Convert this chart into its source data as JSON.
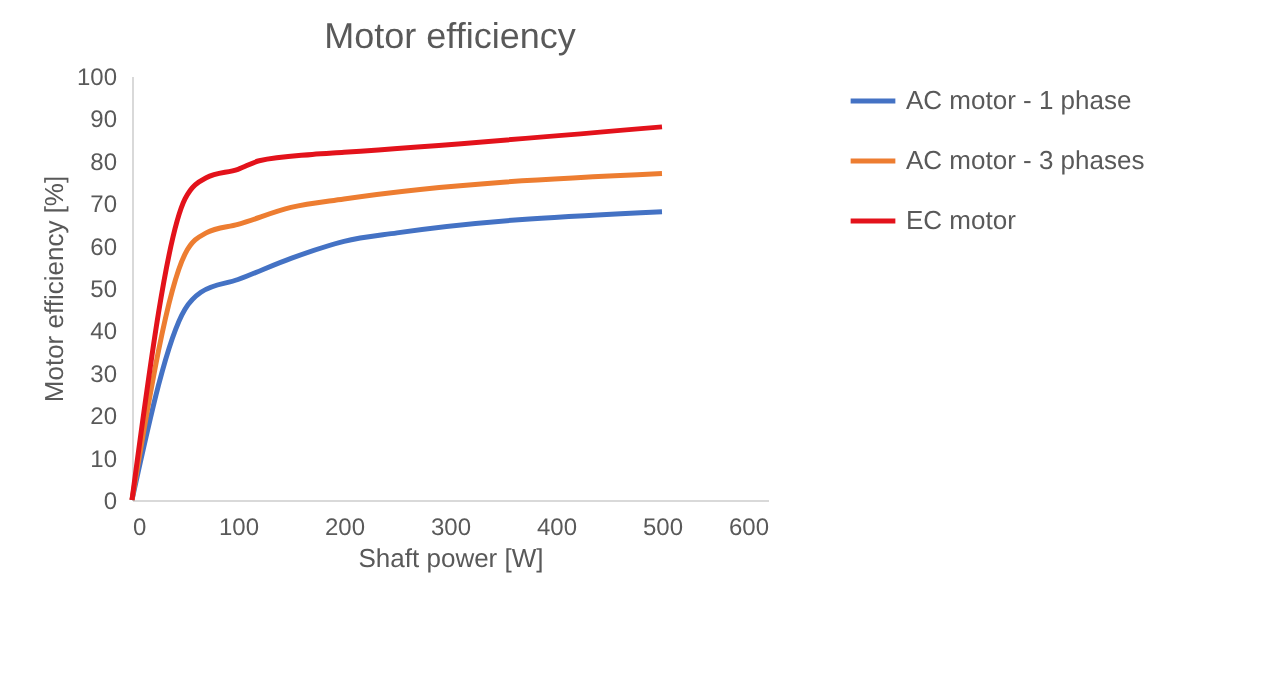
{
  "chart_data": {
    "type": "line",
    "title": "Motor efficiency",
    "xlabel": "Shaft power [W]",
    "ylabel": "Motor efficiency [%]",
    "xlim": [
      0,
      600
    ],
    "xticks": [
      0,
      100,
      200,
      300,
      400,
      500,
      600
    ],
    "ylim": [
      0,
      100
    ],
    "yticks": [
      0,
      10,
      20,
      30,
      40,
      50,
      60,
      70,
      80,
      90,
      100
    ],
    "grid": false,
    "legend": "right",
    "marker": "none",
    "line_style": "solid",
    "series": [
      {
        "name": "AC motor - 1 phase",
        "color": "#4472c4",
        "x": [
          0,
          50,
          65,
          100,
          150,
          200,
          250,
          500
        ],
        "values": [
          0,
          45,
          49,
          52,
          57,
          61,
          63,
          68
        ]
      },
      {
        "name": "AC motor - 3 phases",
        "color": "#ed7d31",
        "x": [
          0,
          50,
          70,
          100,
          150,
          200,
          500
        ],
        "values": [
          0,
          58,
          63,
          65,
          69,
          71,
          77
        ]
      },
      {
        "name": "EC motor",
        "color": "#e3121b",
        "x": [
          0,
          50,
          70,
          100,
          120,
          170,
          200,
          500
        ],
        "values": [
          0,
          71,
          76,
          78,
          80,
          81.5,
          82,
          88
        ]
      }
    ]
  }
}
